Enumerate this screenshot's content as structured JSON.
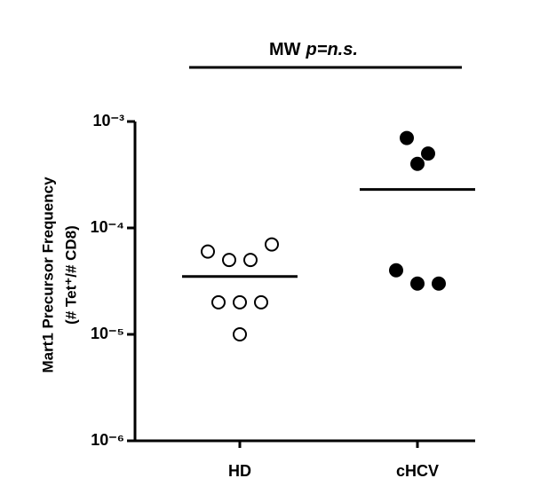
{
  "chart_data": {
    "type": "dot-plot",
    "annotation": [
      "MW",
      "p=n.s."
    ],
    "y_label": [
      "Mart1 Precursor Frequency",
      "(# Tet⁺/# CD8)"
    ],
    "categories": [
      "HD",
      "cHCV"
    ],
    "groups": [
      {
        "values": [
          6e-05,
          5e-05,
          5e-05,
          7e-05,
          2e-05,
          2e-05,
          2e-05,
          1e-05
        ],
        "fill": "#ffffff",
        "stroke": "#000000"
      },
      {
        "values": [
          0.0007,
          0.0005,
          0.0004,
          4e-05,
          3e-05,
          3e-05
        ],
        "fill": "#000000",
        "stroke": "#000000"
      }
    ],
    "medians": [
      3.5e-05,
      0.00023
    ],
    "log_y": true,
    "ylim": [
      1e-06,
      0.001
    ],
    "yticks": [
      {
        "value": 1e-06,
        "label": "10⁻⁶"
      },
      {
        "value": 1e-05,
        "label": "10⁻⁵"
      },
      {
        "value": 0.0001,
        "label": "10⁻⁴"
      },
      {
        "value": 0.001,
        "label": "10⁻³"
      }
    ]
  }
}
